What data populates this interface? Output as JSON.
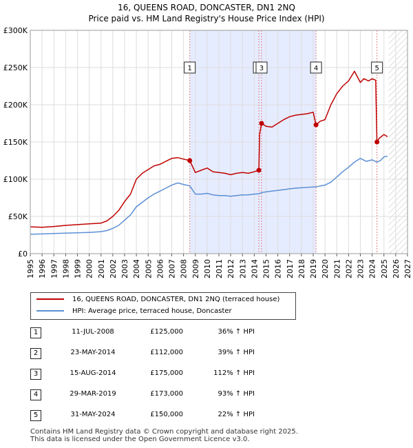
{
  "colors": {
    "property": "#c00000",
    "hpi": "#5b8fd4",
    "grid": "#dddddd",
    "shade": "#e6ecff",
    "marker_line": "#e08080"
  },
  "legend": {
    "property_label": "16, QUEENS ROAD, DONCASTER, DN1 2NQ (terraced house)",
    "hpi_label": "HPI: Average price, terraced house, Doncaster"
  },
  "sales": [
    {
      "num": "1",
      "date": "11-JUL-2008",
      "price": "£125,000",
      "hpi": "36% ↑ HPI"
    },
    {
      "num": "2",
      "date": "23-MAY-2014",
      "price": "£112,000",
      "hpi": "39% ↑ HPI"
    },
    {
      "num": "3",
      "date": "15-AUG-2014",
      "price": "£175,000",
      "hpi": "112% ↑ HPI"
    },
    {
      "num": "4",
      "date": "29-MAR-2019",
      "price": "£173,000",
      "hpi": "93% ↑ HPI"
    },
    {
      "num": "5",
      "date": "31-MAY-2024",
      "price": "£150,000",
      "hpi": "22% ↑ HPI"
    }
  ],
  "footer": {
    "line1": "Contains HM Land Registry data © Crown copyright and database right 2025.",
    "line2": "This data is licensed under the Open Government Licence v3.0."
  },
  "chart_data": {
    "type": "line",
    "title": "16, QUEENS ROAD, DONCASTER, DN1 2NQ",
    "subtitle": "Price paid vs. HM Land Registry's House Price Index (HPI)",
    "xlim": [
      1995,
      2027
    ],
    "ylim": [
      0,
      300000
    ],
    "x_ticks": [
      1995,
      1996,
      1997,
      1998,
      1999,
      2000,
      2001,
      2002,
      2003,
      2004,
      2005,
      2006,
      2007,
      2008,
      2009,
      2010,
      2011,
      2012,
      2013,
      2014,
      2015,
      2016,
      2017,
      2018,
      2019,
      2020,
      2021,
      2022,
      2023,
      2024,
      2025,
      2026,
      2027
    ],
    "y_ticks": [
      {
        "value": 0,
        "label": "£0"
      },
      {
        "value": 50000,
        "label": "£50K"
      },
      {
        "value": 100000,
        "label": "£100K"
      },
      {
        "value": 150000,
        "label": "£150K"
      },
      {
        "value": 200000,
        "label": "£200K"
      },
      {
        "value": 250000,
        "label": "£250K"
      },
      {
        "value": 300000,
        "label": "£300K"
      }
    ],
    "shaded_span": [
      2008.53,
      2019.24
    ],
    "hatched_from": 2025.4,
    "sale_markers": [
      {
        "label": "1",
        "x": 2008.53,
        "y": 125000
      },
      {
        "label": "2",
        "x": 2014.39,
        "y": 112000
      },
      {
        "label": "3",
        "x": 2014.62,
        "y": 175000
      },
      {
        "label": "4",
        "x": 2019.24,
        "y": 173000
      },
      {
        "label": "5",
        "x": 2024.41,
        "y": 150000
      }
    ],
    "series": [
      {
        "name": "16, QUEENS ROAD, DONCASTER, DN1 2NQ (terraced house)",
        "x": [
          1995,
          1996,
          1997,
          1998,
          1999,
          2000,
          2001,
          2001.5,
          2002,
          2002.5,
          2003,
          2003.5,
          2004,
          2004.5,
          2005,
          2005.5,
          2006,
          2006.5,
          2007,
          2007.5,
          2008,
          2008.53,
          2009,
          2009.5,
          2010,
          2010.5,
          2011,
          2011.5,
          2012,
          2012.5,
          2013,
          2013.5,
          2014,
          2014.39,
          2014.45,
          2014.62,
          2015,
          2015.5,
          2016,
          2016.5,
          2017,
          2017.5,
          2018,
          2018.5,
          2019,
          2019.24,
          2019.6,
          2020,
          2020.5,
          2021,
          2021.5,
          2022,
          2022.5,
          2023,
          2023.3,
          2023.7,
          2024,
          2024.3,
          2024.41,
          2024.6,
          2025,
          2025.3
        ],
        "values": [
          36000,
          35500,
          36500,
          38000,
          39000,
          40000,
          41000,
          44000,
          50000,
          58000,
          70000,
          80000,
          100000,
          108000,
          113000,
          118000,
          120000,
          124000,
          128000,
          129000,
          127000,
          125000,
          109000,
          112000,
          115000,
          110000,
          109000,
          108000,
          106000,
          108000,
          109000,
          108000,
          110000,
          112000,
          160000,
          175000,
          171000,
          170000,
          175000,
          180000,
          184000,
          186000,
          187000,
          188000,
          190000,
          173000,
          178000,
          180000,
          200000,
          215000,
          225000,
          232000,
          245000,
          230000,
          235000,
          232000,
          235000,
          233000,
          150000,
          155000,
          160000,
          157000
        ]
      },
      {
        "name": "HPI: Average price, terraced house, Doncaster",
        "x": [
          1995,
          1996,
          1997,
          1998,
          1999,
          2000,
          2001,
          2001.5,
          2002,
          2002.5,
          2003,
          2003.5,
          2004,
          2004.5,
          2005,
          2005.5,
          2006,
          2006.5,
          2007,
          2007.5,
          2008,
          2008.53,
          2009,
          2009.5,
          2010,
          2010.5,
          2011,
          2011.5,
          2012,
          2012.5,
          2013,
          2013.5,
          2014,
          2014.39,
          2014.62,
          2015,
          2015.5,
          2016,
          2016.5,
          2017,
          2017.5,
          2018,
          2018.5,
          2019,
          2019.24,
          2019.6,
          2020,
          2020.5,
          2021,
          2021.5,
          2022,
          2022.5,
          2023,
          2023.5,
          2024,
          2024.41,
          2024.7,
          2025,
          2025.3
        ],
        "values": [
          26000,
          26500,
          27000,
          27500,
          28000,
          28500,
          29500,
          31000,
          34000,
          38000,
          45000,
          52000,
          63000,
          69000,
          75000,
          80000,
          84000,
          88000,
          92000,
          95000,
          93000,
          91000,
          80000,
          80000,
          81000,
          79000,
          78000,
          78000,
          77000,
          78000,
          79000,
          79000,
          80000,
          80500,
          82000,
          83000,
          84000,
          85000,
          86000,
          87000,
          88000,
          88500,
          89000,
          89500,
          89500,
          91000,
          92000,
          96000,
          103000,
          110000,
          116000,
          123000,
          128000,
          124000,
          126000,
          123000,
          125000,
          130000,
          131000
        ]
      }
    ]
  }
}
